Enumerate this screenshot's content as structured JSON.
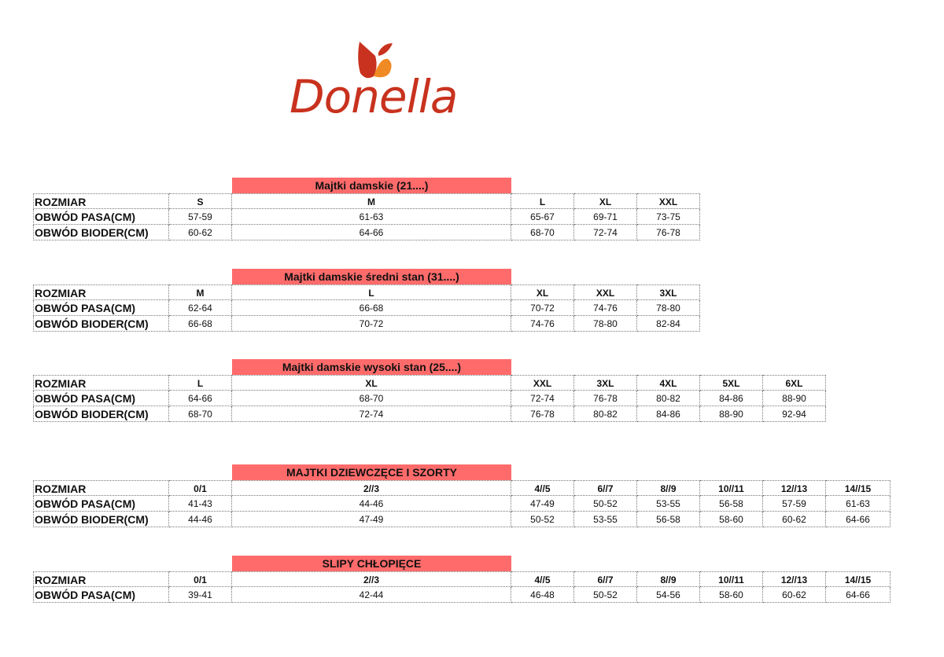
{
  "logo": {
    "text": "Donella",
    "colors": {
      "red": "#c8321e",
      "orange": "#f08a24"
    }
  },
  "title_color": "#ff6b6b",
  "tables": [
    {
      "title": "Majtki damskie (21....)",
      "rows": [
        {
          "label": "ROZMIAR",
          "values": [
            "S",
            "M",
            "L",
            "XL",
            "XXL"
          ]
        },
        {
          "label": "OBWÓD PASA(CM)",
          "values": [
            "57-59",
            "61-63",
            "65-67",
            "69-71",
            "73-75"
          ]
        },
        {
          "label": "OBWÓD BIODER(CM)",
          "values": [
            "60-62",
            "64-66",
            "68-70",
            "72-74",
            "76-78"
          ]
        }
      ]
    },
    {
      "title": "Majtki damskie średni stan (31....)",
      "rows": [
        {
          "label": "ROZMIAR",
          "values": [
            "M",
            "L",
            "XL",
            "XXL",
            "3XL"
          ]
        },
        {
          "label": "OBWÓD PASA(CM)",
          "values": [
            "62-64",
            "66-68",
            "70-72",
            "74-76",
            "78-80"
          ]
        },
        {
          "label": "OBWÓD BIODER(CM)",
          "values": [
            "66-68",
            "70-72",
            "74-76",
            "78-80",
            "82-84"
          ]
        }
      ]
    },
    {
      "title": "Majtki damskie wysoki stan (25....)",
      "rows": [
        {
          "label": "ROZMIAR",
          "values": [
            "L",
            "XL",
            "XXL",
            "3XL",
            "4XL",
            "5XL",
            "6XL"
          ]
        },
        {
          "label": "OBWÓD PASA(CM)",
          "values": [
            "64-66",
            "68-70",
            "72-74",
            "76-78",
            "80-82",
            "84-86",
            "88-90"
          ]
        },
        {
          "label": "OBWÓD BIODER(CM)",
          "values": [
            "68-70",
            "72-74",
            "76-78",
            "80-82",
            "84-86",
            "88-90",
            "92-94"
          ]
        }
      ]
    },
    {
      "title": "MAJTKI DZIEWCZĘCE I SZORTY",
      "rows": [
        {
          "label": "ROZMIAR",
          "values": [
            "0/1",
            "2//3",
            "4//5",
            "6//7",
            "8//9",
            "10//11",
            "12//13",
            "14//15"
          ]
        },
        {
          "label": "OBWÓD PASA(CM)",
          "values": [
            "41-43",
            "44-46",
            "47-49",
            "50-52",
            "53-55",
            "56-58",
            "57-59",
            "61-63"
          ]
        },
        {
          "label": "OBWÓD BIODER(CM)",
          "values": [
            "44-46",
            "47-49",
            "50-52",
            "53-55",
            "56-58",
            "58-60",
            "60-62",
            "64-66"
          ]
        }
      ]
    },
    {
      "title": "SLIPY CHŁOPIĘCE",
      "rows": [
        {
          "label": "ROZMIAR",
          "values": [
            "0/1",
            "2//3",
            "4//5",
            "6//7",
            "8//9",
            "10//11",
            "12//13",
            "14//15"
          ]
        },
        {
          "label": "OBWÓD PASA(CM)",
          "values": [
            "39-41",
            "42-44",
            "46-48",
            "50-52",
            "54-56",
            "58-60",
            "60-62",
            "64-66"
          ]
        }
      ]
    }
  ]
}
